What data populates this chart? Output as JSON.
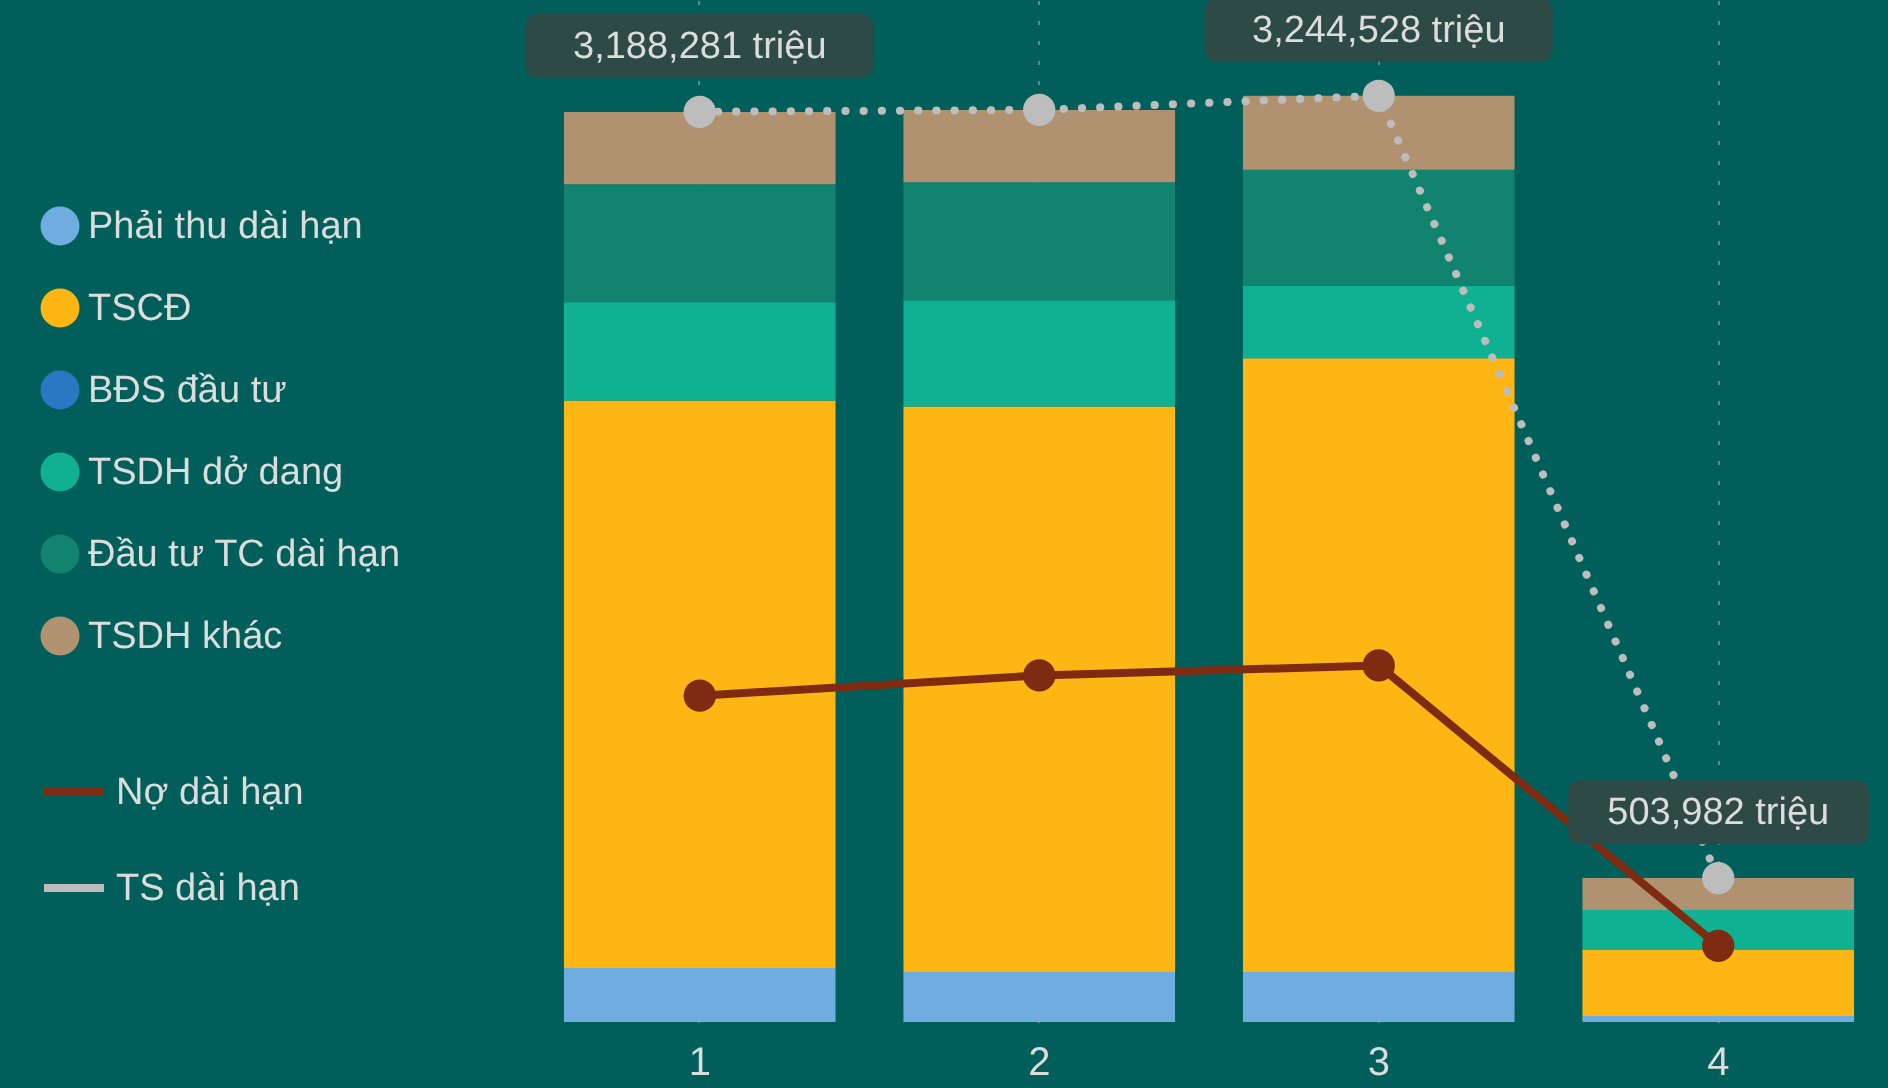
{
  "chart_data": {
    "type": "bar",
    "stacked": true,
    "categories": [
      "1",
      "2",
      "3",
      "4"
    ],
    "ylim": [
      0,
      3580000
    ],
    "tick_labels": "x",
    "grid": "x",
    "legend": "left",
    "marker": "circle",
    "series": [
      {
        "name": "Phải thu dài hạn",
        "color": "#6fade0",
        "values": [
          189000,
          175000,
          175000,
          21000
        ]
      },
      {
        "name": "TSCĐ",
        "color": "#fdb614",
        "values": [
          1988000,
          1981000,
          2150000,
          231000
        ]
      },
      {
        "name": "BĐS đầu tư",
        "color": "#2b78c2",
        "values": [
          0,
          0,
          0,
          0
        ]
      },
      {
        "name": "TSDH dở dang",
        "color": "#10b193",
        "values": [
          344000,
          372000,
          253000,
          140000
        ]
      },
      {
        "name": "Đầu tư TC dài hạn",
        "color": "#12836e",
        "values": [
          414000,
          414000,
          407000,
          0
        ]
      },
      {
        "name": "TSDH khác",
        "color": "#b09270",
        "values": [
          253000,
          253000,
          260000,
          112000
        ]
      },
      {
        "name": "Nợ dài hạn",
        "type": "line",
        "line_style": "solid",
        "color": "#7e2b12",
        "values": [
          1143000,
          1214000,
          1249000,
          267000
        ]
      },
      {
        "name": "TS dài hạn",
        "type": "line",
        "line_style": "dotted",
        "color": "#bdbdbd",
        "values": [
          3188281,
          3195000,
          3244528,
          503982
        ],
        "value_labels": [
          "3,188,281 triệu",
          null,
          "3,244,528 triệu",
          "503,982 triệu"
        ]
      }
    ]
  }
}
